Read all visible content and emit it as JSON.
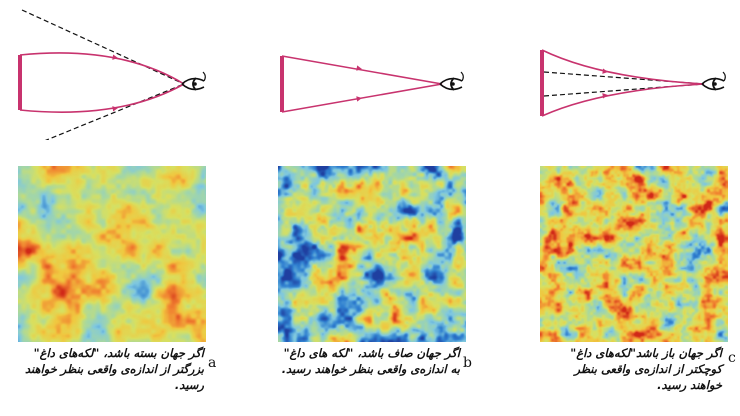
{
  "panels": [
    {
      "letter": "a",
      "caption": "اگر جهان بسته باشد، \"لکه‌های داغ\" بزرگتر از اندازه‌ی واقعی بنظر خواهند رسید.",
      "ray_geometry": "closed",
      "map_style": "large-spots"
    },
    {
      "letter": "b",
      "caption": "اگر جهان صاف باشد، \"لکه‌ های داغ\" به اندازه‌ی واقعی بنظر خواهند رسید.",
      "ray_geometry": "flat",
      "map_style": "true-size-spots"
    },
    {
      "letter": "c",
      "caption": "اگر جهان باز باشد\"لکه‌های داغ\" کوچکتر از اندازه‌ی واقعی بنظر خواهند رسید.",
      "ray_geometry": "open",
      "map_style": "small-spots"
    }
  ],
  "colors": {
    "ray": "#c8336e",
    "dashed": "#111111",
    "eye": "#111111",
    "map_palette": [
      "#1f3fa0",
      "#2f7fd0",
      "#7fc8e0",
      "#a8d8a0",
      "#d8e060",
      "#f0c840",
      "#f08030",
      "#d02818"
    ]
  },
  "icons": [
    "eye-icon"
  ]
}
